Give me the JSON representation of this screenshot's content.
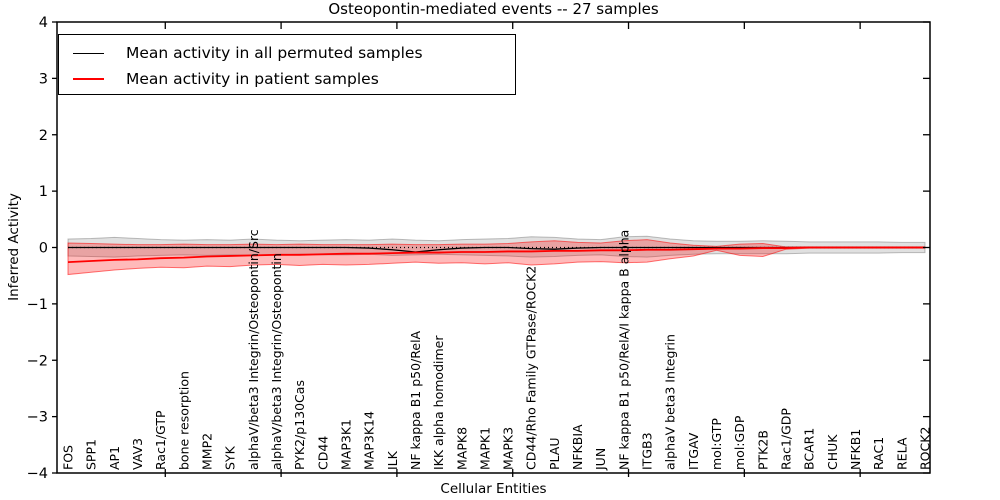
{
  "figure": {
    "title": "Osteopontin-mediated events -- 27 samples",
    "xlabel": "Cellular Entities",
    "ylabel": "Inferred Activity",
    "legend": {
      "permuted_label": "Mean activity in all permuted samples",
      "patient_label": "Mean activity in patient samples"
    },
    "colors": {
      "permuted_line": "#000000",
      "patient_line": "#ff0000",
      "permuted_band": "#000000",
      "patient_band": "#ff0000",
      "axis": "#000000"
    }
  },
  "chart_data": {
    "type": "line",
    "title": "Osteopontin-mediated events -- 27 samples",
    "xlabel": "Cellular Entities",
    "ylabel": "Inferred Activity",
    "ylim": [
      -4,
      4
    ],
    "ytick_values": [
      4,
      3,
      2,
      1,
      0,
      -1,
      -2,
      -3,
      -4
    ],
    "ytick_labels": [
      "4",
      "3",
      "2",
      "1",
      "0",
      "−1",
      "−2",
      "−3",
      "−4"
    ],
    "grid": false,
    "legend_position": "upper left",
    "zero_line": {
      "style": "dotted",
      "color": "#000000",
      "y": 0
    },
    "categories": [
      "FOS",
      "SPP1",
      "AP1",
      "VAV3",
      "Rac1/GTP",
      "bone resorption",
      "MMP2",
      "SYK",
      "alphaV/beta3 Integrin/Osteopontin/Src",
      "alphaV/beta3 Integrin/Osteopontin",
      "PYK2/p130Cas",
      "CD44",
      "MAP3K1",
      "MAP3K14",
      "ILK",
      "NF kappa B1 p50/RelA",
      "IKK alpha homodimer",
      "MAPK8",
      "MAPK1",
      "MAPK3",
      "CD44/Rho Family GTPase/ROCK2",
      "PLAU",
      "NFKBIA",
      "JUN",
      "NF kappa B1 p50/RelA/I kappa B alpha",
      "ITGB3",
      "alphaV beta3 Integrin",
      "ITGAV",
      "mol:GTP",
      "mol:GDP",
      "PTK2B",
      "Rac1/GDP",
      "BCAR1",
      "CHUK",
      "NFKB1",
      "RAC1",
      "RELA",
      "ROCK2"
    ],
    "series": [
      {
        "name": "Mean activity in all permuted samples",
        "color": "#000000",
        "values": [
          0,
          0,
          0,
          0,
          0,
          0,
          0,
          0,
          0,
          0,
          0,
          0,
          0,
          -0.01,
          -0.04,
          -0.08,
          -0.04,
          -0.01,
          0,
          0,
          -0.02,
          -0.03,
          -0.01,
          0,
          0,
          0,
          0,
          0,
          0,
          0,
          0,
          0,
          0,
          0,
          0,
          0,
          0,
          0
        ]
      },
      {
        "name": "Mean activity in patient samples",
        "color": "#ff0000",
        "values": [
          -0.26,
          -0.24,
          -0.22,
          -0.21,
          -0.19,
          -0.18,
          -0.16,
          -0.15,
          -0.14,
          -0.13,
          -0.13,
          -0.12,
          -0.11,
          -0.11,
          -0.1,
          -0.09,
          -0.09,
          -0.08,
          -0.08,
          -0.07,
          -0.07,
          -0.06,
          -0.06,
          -0.05,
          -0.05,
          -0.04,
          -0.04,
          -0.03,
          -0.02,
          -0.02,
          -0.01,
          -0.01,
          0,
          0,
          0,
          0,
          0,
          0
        ]
      }
    ],
    "bands": [
      {
        "name": "permuted-samples-range",
        "color": "#000000",
        "opacity": 0.12,
        "upper": [
          0.15,
          0.16,
          0.18,
          0.16,
          0.14,
          0.13,
          0.14,
          0.13,
          0.15,
          0.13,
          0.12,
          0.13,
          0.14,
          0.13,
          0.15,
          0.13,
          0.12,
          0.14,
          0.15,
          0.16,
          0.19,
          0.18,
          0.15,
          0.14,
          0.19,
          0.2,
          0.15,
          0.12,
          0.11,
          0.11,
          0.12,
          0.11,
          0.1,
          0.1,
          0.1,
          0.1,
          0.09,
          0.09
        ],
        "lower": [
          -0.15,
          -0.16,
          -0.17,
          -0.15,
          -0.14,
          -0.13,
          -0.14,
          -0.13,
          -0.14,
          -0.13,
          -0.12,
          -0.13,
          -0.13,
          -0.12,
          -0.14,
          -0.13,
          -0.12,
          -0.13,
          -0.14,
          -0.15,
          -0.17,
          -0.16,
          -0.14,
          -0.13,
          -0.16,
          -0.17,
          -0.14,
          -0.12,
          -0.11,
          -0.11,
          -0.11,
          -0.11,
          -0.1,
          -0.1,
          -0.1,
          -0.1,
          -0.09,
          -0.09
        ]
      },
      {
        "name": "patient-samples-range",
        "color": "#ff0000",
        "opacity": 0.27,
        "upper": [
          0.08,
          0.07,
          0.06,
          0.05,
          0.05,
          0.06,
          0.05,
          0.05,
          0.06,
          0.05,
          0.06,
          0.05,
          0.05,
          0.05,
          0.06,
          0.05,
          0.05,
          0.06,
          0.06,
          0.07,
          0.1,
          0.12,
          0.09,
          0.08,
          0.12,
          0.14,
          0.08,
          0.04,
          0.02,
          0.06,
          0.07,
          0.01,
          0.01,
          0.01,
          0.01,
          0.01,
          0.01,
          0.01
        ],
        "lower": [
          -0.48,
          -0.44,
          -0.4,
          -0.37,
          -0.35,
          -0.36,
          -0.33,
          -0.34,
          -0.31,
          -0.3,
          -0.32,
          -0.3,
          -0.31,
          -0.3,
          -0.28,
          -0.26,
          -0.28,
          -0.27,
          -0.29,
          -0.27,
          -0.31,
          -0.29,
          -0.26,
          -0.25,
          -0.27,
          -0.26,
          -0.2,
          -0.15,
          -0.05,
          -0.14,
          -0.16,
          -0.03,
          -0.01,
          -0.01,
          -0.01,
          -0.01,
          -0.01,
          -0.01
        ]
      }
    ]
  }
}
